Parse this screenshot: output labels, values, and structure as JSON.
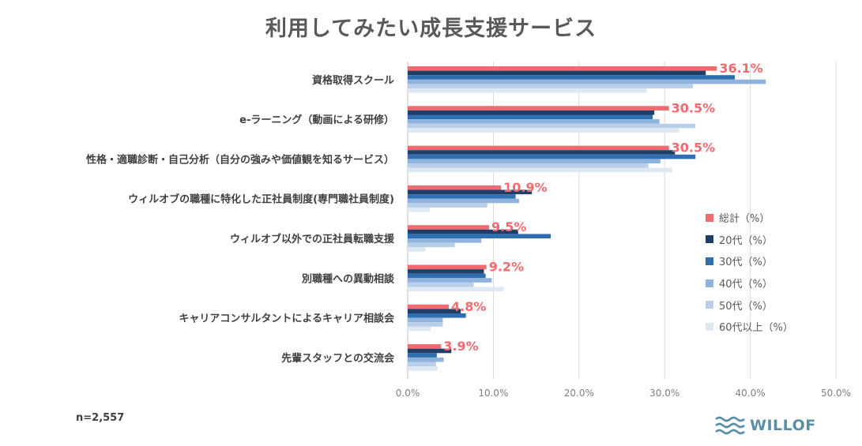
{
  "chart_data": {
    "type": "bar",
    "orientation": "horizontal",
    "title": "利用してみたい成長支援サービス",
    "categories": [
      "資格取得スクール",
      "e-ラーニング（動画による研修）",
      "性格・適職診断・自己分析（自分の強みや価値観を知るサービス）",
      "ウィルオブの職種に特化した正社員制度(専門職社員制度)",
      "ウィルオブ以外での正社員転職支援",
      "別職種への異動相談",
      "キャリアコンサルタントによるキャリア相談会",
      "先輩スタッフとの交流会"
    ],
    "series": [
      {
        "name": "総計（%）",
        "color": "#f06a6f",
        "values": [
          36.1,
          30.5,
          30.5,
          10.9,
          9.5,
          9.2,
          4.8,
          3.9
        ]
      },
      {
        "name": "20代（%）",
        "color": "#1f3f68",
        "values": [
          34.8,
          28.8,
          31.2,
          14.5,
          12.9,
          8.9,
          6.2,
          5.1
        ]
      },
      {
        "name": "30代（%）",
        "color": "#2f6fb0",
        "values": [
          38.2,
          28.6,
          33.6,
          12.6,
          16.7,
          9.1,
          6.8,
          3.4
        ]
      },
      {
        "name": "40代（%）",
        "color": "#8fb3dd",
        "values": [
          41.8,
          29.4,
          29.5,
          13.0,
          8.6,
          9.8,
          4.1,
          4.2
        ]
      },
      {
        "name": "50代（%）",
        "color": "#b9cfe9",
        "values": [
          33.3,
          33.6,
          28.1,
          9.3,
          5.5,
          7.7,
          4.1,
          3.3
        ]
      },
      {
        "name": "60代以上（%）",
        "color": "#dde8f5",
        "values": [
          27.9,
          31.7,
          30.9,
          2.6,
          2.1,
          11.2,
          2.7,
          3.5
        ]
      }
    ],
    "data_labels": [
      "36.1%",
      "30.5%",
      "30.5%",
      "10.9%",
      "9.5%",
      "9.2%",
      "4.8%",
      "3.9%"
    ],
    "x_ticks": [
      0,
      10,
      20,
      30,
      40,
      50
    ],
    "x_tick_labels": [
      "0.0%",
      "10.0%",
      "20.0%",
      "30.0%",
      "40.0%",
      "50.0%"
    ],
    "xlim": [
      0,
      50
    ],
    "grid": true,
    "legend_position": "right"
  },
  "footer": {
    "sample_size": "n=2,557",
    "logo_text": "WILLOF"
  }
}
